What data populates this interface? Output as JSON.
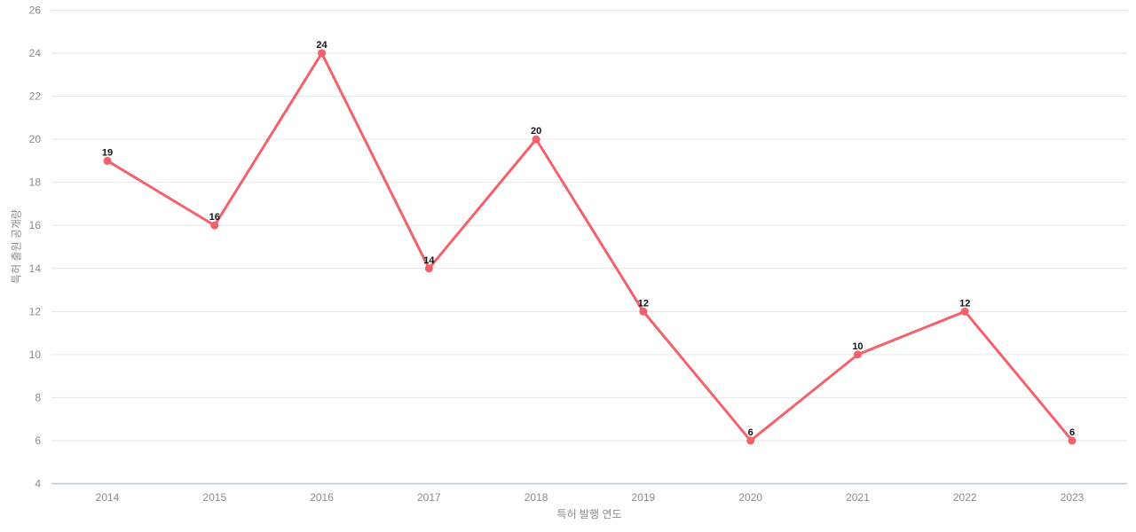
{
  "chart_data": {
    "type": "line",
    "title": "",
    "categories": [
      "2014",
      "2015",
      "2016",
      "2017",
      "2018",
      "2019",
      "2020",
      "2021",
      "2022",
      "2023"
    ],
    "values": [
      19,
      16,
      24,
      14,
      20,
      12,
      6,
      10,
      12,
      6
    ],
    "xlabel": "특허 발행 연도",
    "ylabel": "특허 출원 공개량",
    "ylim": [
      4,
      26
    ],
    "ytick_step": 2,
    "yticks": [
      4,
      6,
      8,
      10,
      12,
      14,
      16,
      18,
      20,
      22,
      24,
      26
    ],
    "grid": true,
    "legend_position": "none",
    "colors": {
      "line": "#f4616a",
      "point": "#f4616a",
      "data_label": "#111111",
      "tick_label": "#8c8c8c",
      "axis_title": "#8c8c8c",
      "gridline": "#e6e6e6",
      "bottom_axis_line": "#b3c9e2",
      "background": "#ffffff"
    }
  }
}
